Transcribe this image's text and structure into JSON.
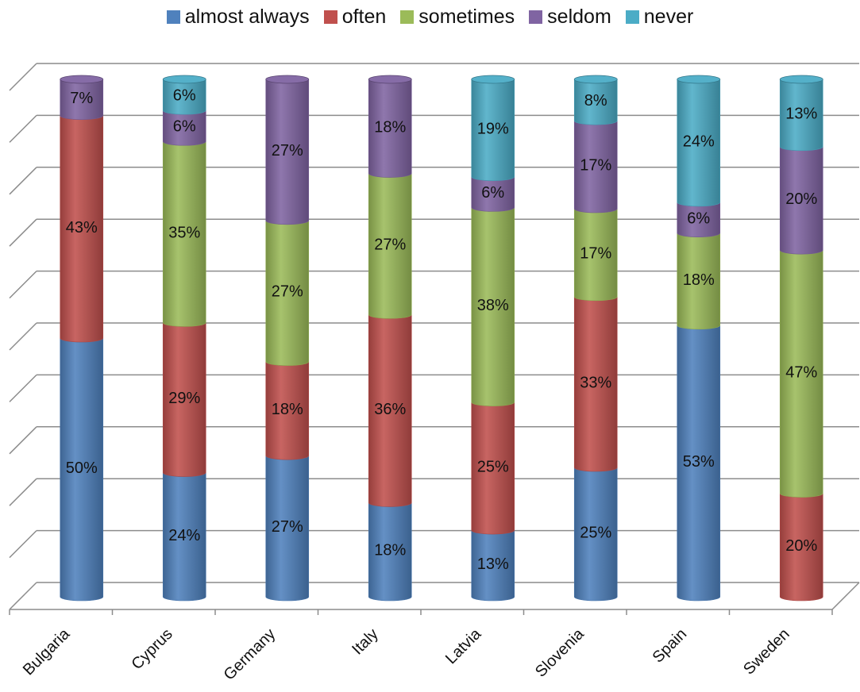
{
  "chart_data": {
    "type": "bar",
    "stacked": true,
    "percent_stacked": true,
    "categories": [
      "Bulgaria",
      "Cyprus",
      "Germany",
      "Italy",
      "Latvia",
      "Slovenia",
      "Spain",
      "Sweden"
    ],
    "series": [
      {
        "name": "almost always",
        "color": "#4f81bd",
        "values": [
          50,
          24,
          27,
          18,
          13,
          25,
          53,
          0
        ]
      },
      {
        "name": "often",
        "color": "#c0504d",
        "values": [
          43,
          29,
          18,
          36,
          25,
          33,
          0,
          20
        ]
      },
      {
        "name": "sometimes",
        "color": "#9bbb59",
        "values": [
          0,
          35,
          27,
          27,
          38,
          17,
          18,
          47
        ]
      },
      {
        "name": "seldom",
        "color": "#8064a2",
        "values": [
          7,
          6,
          27,
          18,
          6,
          17,
          6,
          20
        ]
      },
      {
        "name": "never",
        "color": "#4bacc6",
        "values": [
          0,
          6,
          0,
          0,
          19,
          8,
          24,
          13
        ]
      }
    ],
    "data_labels": true,
    "label_suffix": "%",
    "ylim": [
      0,
      100
    ],
    "grid": true,
    "legend_position": "top",
    "style": "3d-cylinder"
  }
}
